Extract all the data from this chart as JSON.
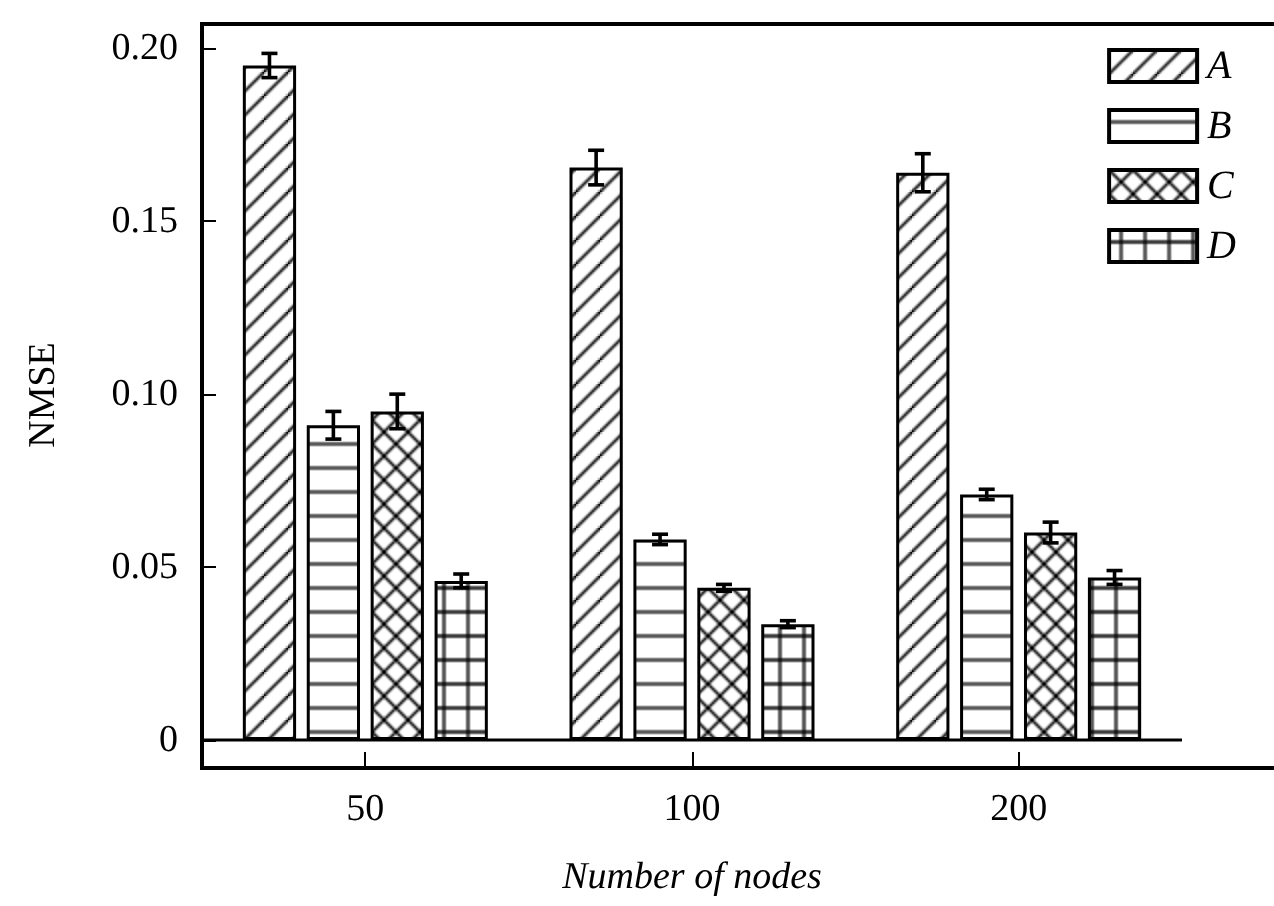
{
  "chart_data": {
    "type": "bar",
    "xlabel": "Number of nodes",
    "ylabel": "NMSE",
    "categories": [
      "50",
      "100",
      "200"
    ],
    "series": [
      {
        "name": "A",
        "color": "#000000",
        "values": [
          0.195,
          0.1655,
          0.164
        ],
        "errors": [
          0.0035,
          0.005,
          0.0055
        ]
      },
      {
        "name": "B",
        "color": "#000000",
        "values": [
          0.091,
          0.058,
          0.071
        ],
        "errors": [
          0.004,
          0.0015,
          0.0015
        ]
      },
      {
        "name": "C",
        "color": "#000000",
        "values": [
          0.095,
          0.044,
          0.06
        ],
        "errors": [
          0.005,
          0.001,
          0.003
        ]
      },
      {
        "name": "D",
        "color": "#000000",
        "values": [
          0.046,
          0.0335,
          0.047
        ],
        "errors": [
          0.002,
          0.001,
          0.002
        ]
      }
    ],
    "ylim": [
      -0.0075,
      0.207
    ],
    "yticks": [
      0,
      0.05,
      {
        "value": 0.1,
        "label": "0.10"
      },
      0.15,
      {
        "value": 0.2,
        "label": "0.20"
      }
    ],
    "ref_lines": [
      {
        "axis": "y",
        "value": 0,
        "color": "#000000",
        "line_style": "solid"
      }
    ],
    "grid": false,
    "legend": "top right"
  }
}
